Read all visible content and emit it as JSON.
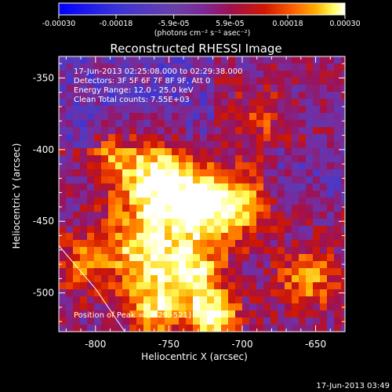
{
  "chart_data": {
    "type": "heatmap",
    "title": "Reconstructed RHESSI Image",
    "xlabel": "Heliocentric X (arcsec)",
    "ylabel": "Heliocentric Y (arcsec)",
    "xlim": [
      -825,
      -630
    ],
    "ylim": [
      -527,
      -335
    ],
    "x_ticks": [
      -800,
      -750,
      -700,
      -650
    ],
    "y_ticks": [
      -350,
      -400,
      -450,
      -500
    ],
    "x_tick_labels": [
      "-800",
      "-750",
      "-700",
      "-650"
    ],
    "y_tick_labels": [
      "-350",
      "-400",
      "-450",
      "-500"
    ],
    "colorbar": {
      "range": [
        -0.0003,
        0.0003
      ],
      "tick_values": [
        -0.0003,
        -0.00018,
        -5.9e-05,
        5.9e-05,
        0.00018,
        0.0003
      ],
      "tick_labels": [
        "-0.00030",
        "-0.00018",
        "-5.9e-05",
        "5.9e-05",
        "0.00018",
        "0.00030"
      ],
      "unit_label": "(photons cm⁻² s⁻¹ asec⁻²)"
    },
    "info_lines": [
      "17-Jun-2013 02:25:08.000 to 02:29:38.000",
      "Detectors: 3F 5F 6F 7F 8F 9F, Att 0",
      "Energy Range: 12.0 - 25.0 keV",
      "Clean    Total counts: 7.55E+03"
    ],
    "peak_annotation": "Position of Peak = [-729,-521]",
    "peak_position": [
      -729,
      -521
    ],
    "limb_curve": [
      [
        -825,
        -467
      ],
      [
        -800,
        -497
      ],
      [
        -780,
        -527
      ]
    ],
    "grid": false,
    "colors": {
      "background": "#000000",
      "axes": "#ffffff",
      "colormap": [
        "#0000ff",
        "#3a33d8",
        "#5a3ab8",
        "#7a2a9a",
        "#a01050",
        "#d01800",
        "#ff6000",
        "#ffb000",
        "#ffff60",
        "#ffffff"
      ]
    }
  },
  "footer": {
    "timestamp": "17-Jun-2013 03:49"
  }
}
